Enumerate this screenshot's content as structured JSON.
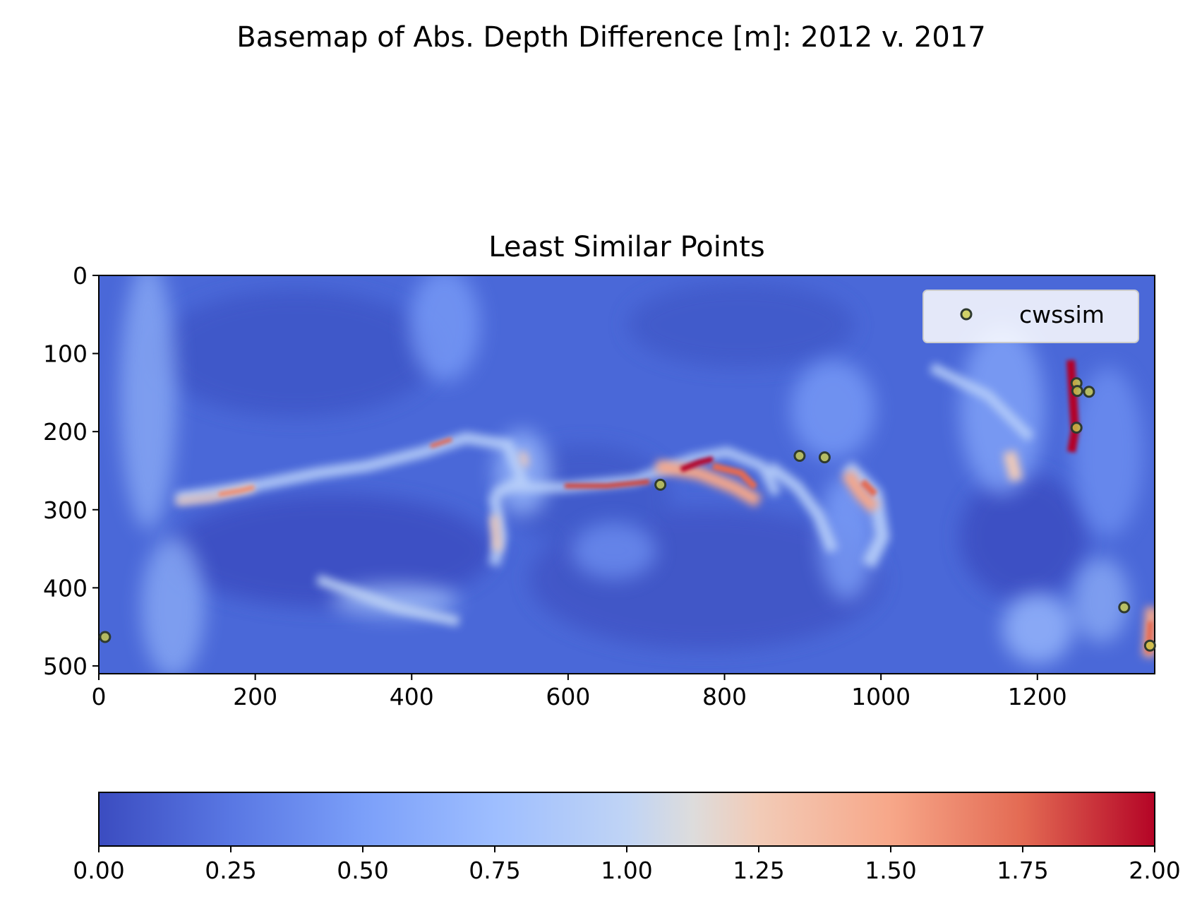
{
  "suptitle": "Basemap of Abs. Depth Difference [m]: 2012 v. 2017",
  "chart_data": [
    {
      "type": "heatmap",
      "title": "Least Similar Points",
      "xlim": [
        0,
        1350
      ],
      "ylim": [
        510,
        0
      ],
      "xticks": [
        "0",
        "200",
        "400",
        "600",
        "800",
        "1000",
        "1200"
      ],
      "yticks": [
        "0",
        "100",
        "200",
        "300",
        "400",
        "500"
      ],
      "colormap": "coolwarm",
      "value_range": [
        0,
        2
      ],
      "features": {
        "description_note": "",
        "hotspots": [
          {
            "x": 1250,
            "y": 185,
            "value": 2.0
          },
          {
            "x": 760,
            "y": 240,
            "value": 2.0
          },
          {
            "x": 640,
            "y": 268,
            "value": 1.8
          },
          {
            "x": 450,
            "y": 215,
            "value": 1.6
          },
          {
            "x": 180,
            "y": 275,
            "value": 1.5
          },
          {
            "x": 860,
            "y": 255,
            "value": 1.4
          },
          {
            "x": 980,
            "y": 265,
            "value": 1.4
          },
          {
            "x": 1345,
            "y": 475,
            "value": 1.5
          },
          {
            "x": 1170,
            "y": 240,
            "value": 1.2
          },
          {
            "x": 515,
            "y": 320,
            "value": 1.1
          }
        ]
      }
    },
    {
      "type": "scatter",
      "series": [
        {
          "name": "cwssim",
          "color": "#cccc44",
          "points": [
            {
              "x": 8,
              "y": 463
            },
            {
              "x": 718,
              "y": 268
            },
            {
              "x": 896,
              "y": 231
            },
            {
              "x": 928,
              "y": 233
            },
            {
              "x": 1250,
              "y": 138
            },
            {
              "x": 1251,
              "y": 148
            },
            {
              "x": 1266,
              "y": 149
            },
            {
              "x": 1250,
              "y": 195
            },
            {
              "x": 1311,
              "y": 425
            },
            {
              "x": 1344,
              "y": 474
            }
          ]
        }
      ],
      "legend": "upper right"
    },
    {
      "type": "colorbar",
      "colormap": "coolwarm",
      "range": [
        0,
        2
      ],
      "ticks": [
        "0.00",
        "0.25",
        "0.50",
        "0.75",
        "1.00",
        "1.25",
        "1.50",
        "1.75",
        "2.00"
      ]
    }
  ],
  "colors": {
    "cmap_low": "#3b4cc0",
    "cmap_mid": "#dddddd",
    "cmap_high": "#b40426",
    "marker_face": "#cccc44",
    "marker_edge": "#2f3a2f"
  }
}
